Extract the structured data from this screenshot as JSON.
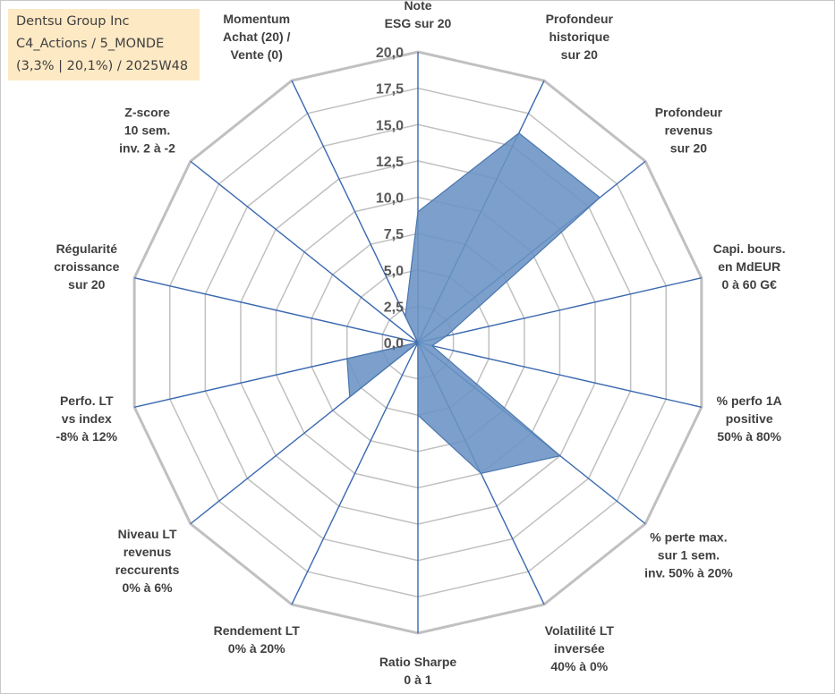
{
  "header": {
    "company": "Dentsu Group Inc",
    "category": "C4_Actions / 5_MONDE",
    "stats": "(3,3% | 20,1%) / 2025W48"
  },
  "chart_data": {
    "type": "radar",
    "title": "",
    "r_range": [
      0,
      20
    ],
    "r_step": 2.5,
    "tick_labels": [
      "0,0",
      "2,5",
      "5,0",
      "7,5",
      "10,0",
      "12,5",
      "15,0",
      "17,5",
      "20,0"
    ],
    "grid": true,
    "fill_color": "#6a93c4",
    "line_color": "#4a76ae",
    "gridline_color": "#c0c0c0",
    "axis_color": "#3a68b0",
    "categories": [
      [
        "Note",
        "ESG sur 20"
      ],
      [
        "Profondeur",
        "historique",
        "sur 20"
      ],
      [
        "Profondeur",
        "revenus",
        "sur 20"
      ],
      [
        "Capi. bours.",
        "en MdEUR",
        "0 à 60 G€"
      ],
      [
        "% perfo 1A",
        "positive",
        "50% à 80%"
      ],
      [
        "% perte max.",
        "sur 1 sem.",
        "inv. 50% à 20%"
      ],
      [
        "Volatilité LT",
        "inversée",
        "40% à 0%"
      ],
      [
        "Ratio Sharpe",
        "0 à 1"
      ],
      [
        "Rendement LT",
        "0% à 20%"
      ],
      [
        "Niveau LT",
        "revenus",
        "reccurents",
        "0% à 6%"
      ],
      [
        "Perfo. LT",
        "vs index",
        "-8% à 12%"
      ],
      [
        "Régularité",
        "croissance",
        "sur 20"
      ],
      [
        "Z-score",
        "10 sem.",
        "inv. 2 à -2"
      ],
      [
        "Momentum",
        "Achat (20) /",
        "Vente (0)"
      ]
    ],
    "series": [
      {
        "values": [
          9.0,
          16.0,
          16.0,
          2.0,
          1.0,
          12.5,
          10.0,
          5.0,
          0.0,
          6.0,
          5.0,
          0.0,
          0.0,
          2.0
        ]
      }
    ]
  }
}
